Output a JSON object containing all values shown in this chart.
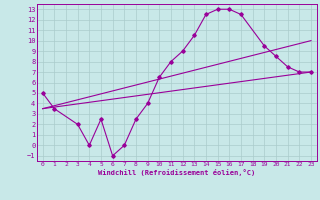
{
  "xlabel": "Windchill (Refroidissement éolien,°C)",
  "bg_color": "#c8e8e8",
  "grid_color": "#aacccc",
  "line_color": "#990099",
  "xlim": [
    -0.5,
    23.5
  ],
  "ylim": [
    -1.5,
    13.5
  ],
  "xticks": [
    0,
    1,
    2,
    3,
    4,
    5,
    6,
    7,
    8,
    9,
    10,
    11,
    12,
    13,
    14,
    15,
    16,
    17,
    18,
    19,
    20,
    21,
    22,
    23
  ],
  "yticks": [
    -1,
    0,
    1,
    2,
    3,
    4,
    5,
    6,
    7,
    8,
    9,
    10,
    11,
    12,
    13
  ],
  "series1_x": [
    0,
    1,
    3,
    4,
    5,
    6,
    7,
    8,
    9,
    10,
    11,
    12,
    13,
    14,
    15,
    16,
    17,
    19,
    20,
    21,
    22,
    23
  ],
  "series1_y": [
    5.0,
    3.5,
    2.0,
    0.0,
    2.5,
    -1.0,
    0.0,
    2.5,
    4.0,
    6.5,
    8.0,
    9.0,
    10.5,
    12.5,
    13.0,
    13.0,
    12.5,
    9.5,
    8.5,
    7.5,
    7.0,
    7.0
  ],
  "series2_x": [
    0,
    23
  ],
  "series2_y": [
    3.5,
    7.0
  ],
  "series3_x": [
    0,
    23
  ],
  "series3_y": [
    3.5,
    10.0
  ]
}
